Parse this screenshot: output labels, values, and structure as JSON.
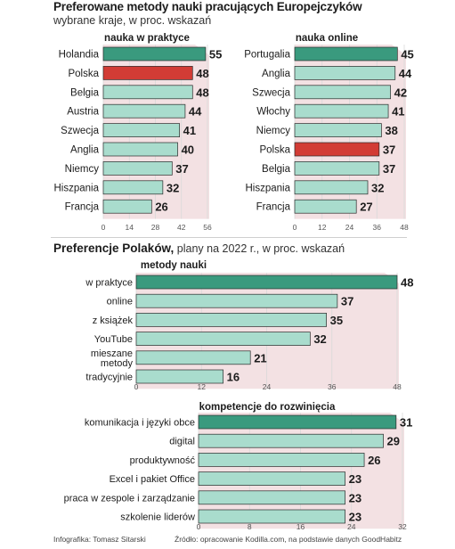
{
  "header": {
    "title": "Preferowane metody nauki pracujących Europejczyków",
    "subtitle": "wybrane kraje, w proc. wskazań"
  },
  "section2": {
    "title_bold": "Preferencje Polaków,",
    "title_rest": " plany na 2022 r., w proc. wskazań"
  },
  "footer": {
    "left": "Infografika: Tomasz Sitarski",
    "right": "Źródło: opracowanie Kodilla.com, na podstawie danych GoodHabitz"
  },
  "colors": {
    "bar": "#a9dccd",
    "highlight_teal": "#3a9a7e",
    "highlight_red": "#d23c35",
    "shade": "#f3e1e3",
    "text": "#1c1c1c"
  },
  "chart_data": [
    {
      "id": "praktyce",
      "type": "bar",
      "orientation": "horizontal",
      "title": "nauka w praktyce",
      "categories": [
        "Holandia",
        "Polska",
        "Belgia",
        "Austria",
        "Szwecja",
        "Anglia",
        "Niemcy",
        "Hiszpania",
        "Francja"
      ],
      "values": [
        55,
        48,
        48,
        44,
        41,
        40,
        37,
        32,
        26
      ],
      "highlight": {
        "Holandia": "teal",
        "Polska": "red"
      },
      "xlim": [
        0,
        56
      ],
      "ticks": [
        0,
        14,
        28,
        42,
        56
      ]
    },
    {
      "id": "online",
      "type": "bar",
      "orientation": "horizontal",
      "title": "nauka online",
      "categories": [
        "Portugalia",
        "Anglia",
        "Szwecja",
        "Włochy",
        "Niemcy",
        "Polska",
        "Belgia",
        "Hiszpania",
        "Francja"
      ],
      "values": [
        45,
        44,
        42,
        41,
        38,
        37,
        37,
        32,
        27
      ],
      "highlight": {
        "Portugalia": "teal",
        "Polska": "red"
      },
      "xlim": [
        0,
        48
      ],
      "ticks": [
        0,
        12,
        24,
        36,
        48
      ]
    },
    {
      "id": "metody",
      "type": "bar",
      "orientation": "horizontal",
      "title": "metody nauki",
      "categories": [
        "w praktyce",
        "online",
        "z książek",
        "YouTube",
        "mieszane\nmetody",
        "tradycyjnie"
      ],
      "values": [
        48,
        37,
        35,
        32,
        21,
        16
      ],
      "highlight": {
        "w praktyce": "teal"
      },
      "xlim": [
        0,
        48
      ],
      "ticks": [
        0,
        12,
        24,
        36,
        48
      ]
    },
    {
      "id": "kompetencje",
      "type": "bar",
      "orientation": "horizontal",
      "title": "kompetencje do rozwinięcia",
      "categories": [
        "komunikacja i języki obce",
        "digital",
        "produktywność",
        "Excel i pakiet Office",
        "praca w zespole i zarządzanie",
        "szkolenie liderów"
      ],
      "values": [
        31,
        29,
        26,
        23,
        23,
        23
      ],
      "highlight": {
        "komunikacja i języki obce": "teal"
      },
      "xlim": [
        0,
        32
      ],
      "ticks": [
        0,
        8,
        16,
        24,
        32
      ]
    }
  ]
}
